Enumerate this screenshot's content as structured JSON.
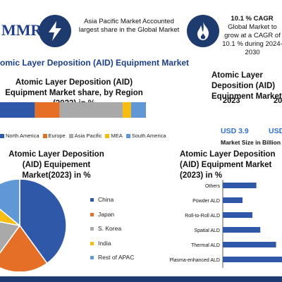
{
  "header": {
    "logo_text": "MMR",
    "col1_text": "Asia Pacific Market Accounted largest share in the Global Market",
    "col2_title": "10.1 % CAGR",
    "col2_text": "Global Market to grow at a CAGR of 10.1 % during 2024-2030"
  },
  "banner": {
    "title": "omic Layer Deposition (AID) Equipment Market"
  },
  "right_top": {
    "title": "Atomic Layer Deposition (AID) Equipment Market",
    "year1": "2023",
    "year2": "20",
    "value1": "USD 3.9",
    "value2": "USD",
    "size_label": "Market Size in Billion"
  },
  "share_card": {
    "title": "Atomic Layer Deposition (AID) Equipment Market share, by Region (2023) in %"
  },
  "pie_card": {
    "title": "Atomic Layer Deposition (AID) Equipement Market(2023) in %"
  },
  "bar_card": {
    "title": "Atomic Layer Deposition (AID) Equipment Market (2023) in %"
  },
  "chart_data": [
    {
      "type": "bar",
      "orientation": "horizontal-stacked",
      "title": "Atomic Layer Deposition (AID) Equipment Market share, by Region (2023) in %",
      "series": [
        {
          "name": "North America",
          "values": [
            21
          ],
          "color": "#2f58a8"
        },
        {
          "name": "Europe",
          "values": [
            15
          ],
          "color": "#e56f26"
        },
        {
          "name": "Asia Pacific",
          "values": [
            38
          ],
          "color": "#a9a9a9"
        },
        {
          "name": "MEA",
          "values": [
            5
          ],
          "color": "#f6bd11"
        },
        {
          "name": "South America",
          "values": [
            9
          ],
          "color": "#5f98d4"
        }
      ],
      "legend": "bottom"
    },
    {
      "type": "pie",
      "title": "Atomic Layer Deposition (AID) Equipement Market(2023) in %",
      "labels": [
        "China",
        "Japan",
        "S. Korea",
        "India",
        "Rest of APAC"
      ],
      "values": [
        40,
        20,
        18,
        8,
        14
      ],
      "colors": [
        "#2f58a8",
        "#e56f26",
        "#a9a9a9",
        "#f6bd11",
        "#5f98d4"
      ],
      "legend": "right"
    },
    {
      "type": "bar",
      "orientation": "horizontal",
      "title": "Atomic Layer Deposition (AID) Equipment Market (2023) in %",
      "categories": [
        "Others",
        "Powder ALD",
        "Roll-to-Roll ALD",
        "Spatial ALD",
        "Thermal ALD",
        "Plasma-enhanced ALD"
      ],
      "values": [
        17,
        10,
        15,
        19,
        27,
        30
      ],
      "xlim": [
        0,
        30
      ],
      "color": "#2f58a8"
    }
  ]
}
